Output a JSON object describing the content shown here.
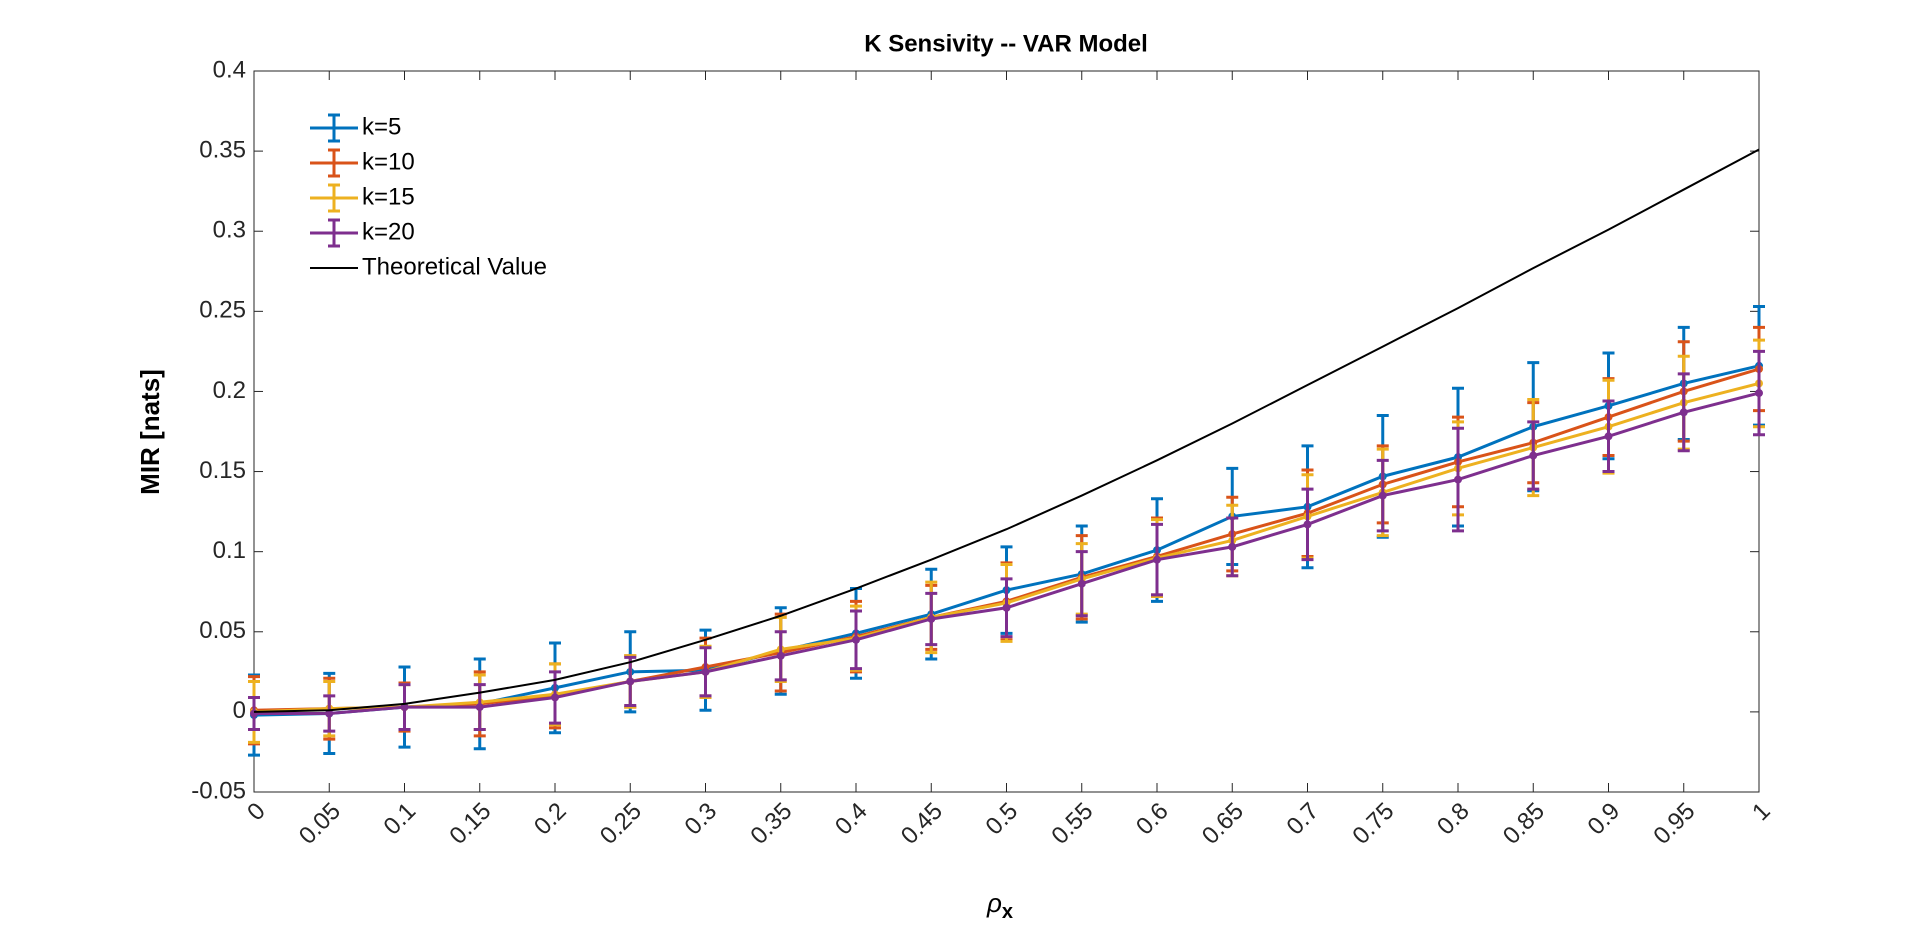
{
  "chart_data": {
    "type": "errorbar-line",
    "title": "K Sensivity -- VAR Model",
    "xlabel": {
      "symbol": "ρ",
      "subscript": "x"
    },
    "ylabel": "MIR [nats]",
    "x": [
      0,
      0.05,
      0.1,
      0.15,
      0.2,
      0.25,
      0.3,
      0.35,
      0.4,
      0.45,
      0.5,
      0.55,
      0.6,
      0.65,
      0.7,
      0.75,
      0.8,
      0.85,
      0.9,
      0.95,
      1
    ],
    "xlim": [
      0,
      1
    ],
    "xticks": [
      0,
      0.05,
      0.1,
      0.15,
      0.2,
      0.25,
      0.3,
      0.35,
      0.4,
      0.45,
      0.5,
      0.55,
      0.6,
      0.65,
      0.7,
      0.75,
      0.8,
      0.85,
      0.9,
      0.95,
      1
    ],
    "ylim": [
      -0.05,
      0.4
    ],
    "yticks": [
      -0.05,
      0,
      0.05,
      0.1,
      0.15,
      0.2,
      0.25,
      0.3,
      0.35,
      0.4
    ],
    "legend": "upper left",
    "series": [
      {
        "name": "k=5",
        "color": "#0072bd",
        "values": [
          -0.002,
          -0.001,
          0.003,
          0.005,
          0.015,
          0.025,
          0.026,
          0.038,
          0.049,
          0.061,
          0.076,
          0.086,
          0.101,
          0.122,
          0.128,
          0.147,
          0.159,
          0.178,
          0.191,
          0.205,
          0.216
        ],
        "errors": [
          0.025,
          0.025,
          0.025,
          0.028,
          0.028,
          0.025,
          0.025,
          0.027,
          0.028,
          0.028,
          0.027,
          0.03,
          0.032,
          0.03,
          0.038,
          0.038,
          0.043,
          0.04,
          0.033,
          0.035,
          0.037
        ]
      },
      {
        "name": "k=10",
        "color": "#d95319",
        "values": [
          0.001,
          0.002,
          0.003,
          0.005,
          0.01,
          0.019,
          0.028,
          0.037,
          0.047,
          0.059,
          0.069,
          0.084,
          0.097,
          0.111,
          0.124,
          0.142,
          0.156,
          0.168,
          0.184,
          0.2,
          0.214
        ],
        "errors": [
          0.021,
          0.019,
          0.015,
          0.02,
          0.02,
          0.016,
          0.018,
          0.024,
          0.022,
          0.02,
          0.024,
          0.026,
          0.024,
          0.023,
          0.027,
          0.024,
          0.028,
          0.025,
          0.024,
          0.031,
          0.026
        ]
      },
      {
        "name": "k=15",
        "color": "#edb120",
        "values": [
          0,
          0.002,
          0.003,
          0.006,
          0.011,
          0.019,
          0.025,
          0.039,
          0.046,
          0.059,
          0.068,
          0.083,
          0.096,
          0.107,
          0.122,
          0.137,
          0.152,
          0.165,
          0.178,
          0.193,
          0.205
        ],
        "errors": [
          0.019,
          0.017,
          0.014,
          0.017,
          0.019,
          0.016,
          0.016,
          0.02,
          0.02,
          0.022,
          0.024,
          0.022,
          0.024,
          0.022,
          0.026,
          0.027,
          0.029,
          0.03,
          0.029,
          0.029,
          0.027
        ]
      },
      {
        "name": "k=20",
        "color": "#7e2f8e",
        "values": [
          -0.001,
          -0.001,
          0.003,
          0.003,
          0.009,
          0.019,
          0.025,
          0.035,
          0.045,
          0.058,
          0.065,
          0.08,
          0.095,
          0.103,
          0.117,
          0.135,
          0.145,
          0.16,
          0.172,
          0.187,
          0.199
        ],
        "errors": [
          0.01,
          0.011,
          0.014,
          0.014,
          0.016,
          0.015,
          0.015,
          0.015,
          0.018,
          0.016,
          0.018,
          0.02,
          0.022,
          0.018,
          0.022,
          0.022,
          0.032,
          0.021,
          0.022,
          0.024,
          0.026
        ]
      },
      {
        "name": "Theoretical Value",
        "color": "#000000",
        "values": [
          0,
          0.001,
          0.005,
          0.012,
          0.02,
          0.031,
          0.045,
          0.06,
          0.077,
          0.095,
          0.114,
          0.135,
          0.157,
          0.18,
          0.204,
          0.228,
          0.252,
          0.277,
          0.301,
          0.326,
          0.351
        ]
      }
    ]
  }
}
